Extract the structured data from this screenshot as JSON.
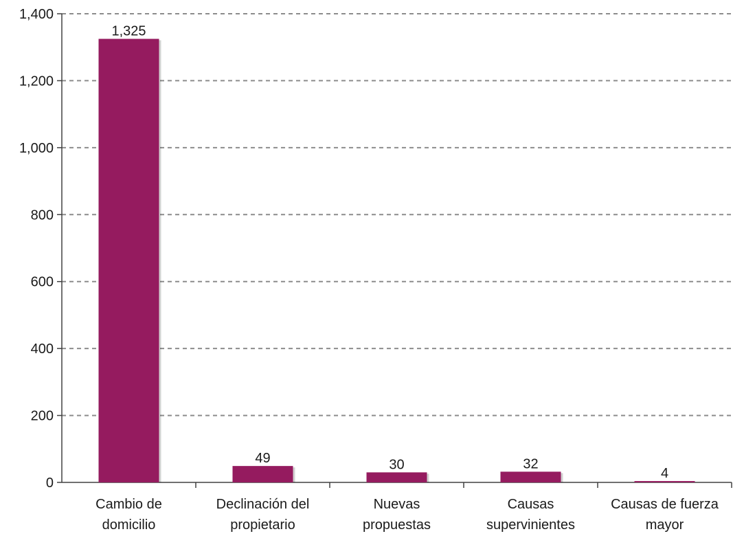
{
  "chart_data": {
    "type": "bar",
    "title": "",
    "xlabel": "",
    "ylabel": "",
    "categories": [
      [
        "Cambio de",
        "domicilio"
      ],
      [
        "Declinación del",
        "propietario"
      ],
      [
        "Nuevas",
        "propuestas"
      ],
      [
        "Causas",
        "supervinientes"
      ],
      [
        "Causas de fuerza",
        "mayor"
      ]
    ],
    "values": [
      1325,
      49,
      30,
      32,
      4
    ],
    "data_labels": [
      "1,325",
      "49",
      "30",
      "32",
      "4"
    ],
    "ylim": [
      0,
      1400
    ],
    "yticks": [
      0,
      200,
      400,
      600,
      800,
      1000,
      1200,
      1400
    ],
    "ytick_labels": [
      "0",
      "200",
      "400",
      "600",
      "800",
      "1,000",
      "1,200",
      "1,400"
    ],
    "grid": true,
    "legend": "none",
    "bar_color": "#951b5f",
    "grid_color": "#8c8c8c",
    "axis_color": "#404040"
  }
}
